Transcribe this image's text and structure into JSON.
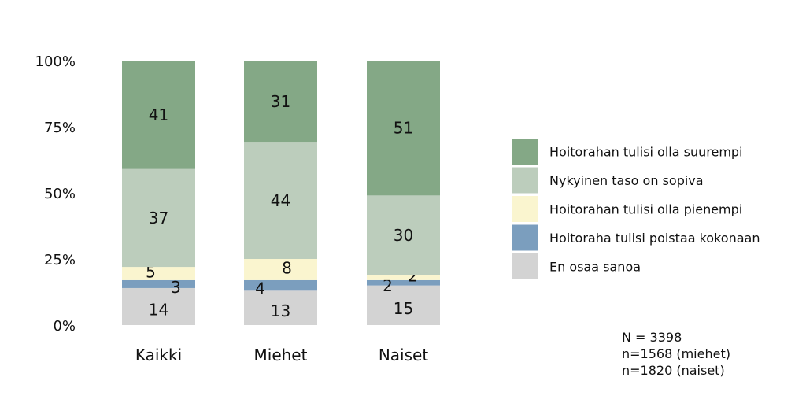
{
  "chart_data": {
    "type": "bar",
    "stacked": true,
    "percent": true,
    "categories": [
      "Kaikki",
      "Miehet",
      "Naiset"
    ],
    "ylim": [
      0,
      100
    ],
    "yticks": [
      "0%",
      "25%",
      "50%",
      "75%",
      "100%"
    ],
    "grid": false,
    "legend_position": "right",
    "series": [
      {
        "name": "En osaa sanoa",
        "color": "#d3d3d3",
        "values": [
          14,
          13,
          15
        ]
      },
      {
        "name": "Hoitoraha tulisi poistaa kokonaan",
        "color": "#7b9ebe",
        "values": [
          3,
          4,
          2
        ]
      },
      {
        "name": "Hoitorahan tulisi olla pienempi",
        "color": "#faf5cf",
        "values": [
          5,
          8,
          2
        ]
      },
      {
        "name": "Nykyinen taso on sopiva",
        "color": "#bccdbc",
        "values": [
          37,
          44,
          30
        ]
      },
      {
        "name": "Hoitorahan tulisi olla suurempi",
        "color": "#84a886",
        "values": [
          41,
          31,
          51
        ]
      }
    ],
    "legend_order": [
      "Hoitorahan tulisi olla suurempi",
      "Nykyinen taso on sopiva",
      "Hoitorahan tulisi olla pienempi",
      "Hoitoraha tulisi poistaa kokonaan",
      "En osaa sanoa"
    ]
  },
  "notes": [
    "N = 3398",
    "n=1568 (miehet)",
    "n=1820 (naiset)"
  ]
}
